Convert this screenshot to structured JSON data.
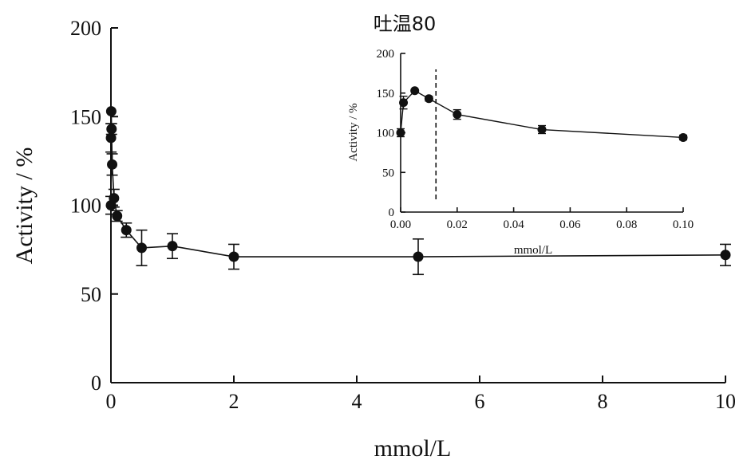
{
  "chart_data": [
    {
      "type": "line",
      "xlabel": "mmol/L",
      "ylabel": "Activity / %",
      "xlim": [
        0,
        10
      ],
      "ylim": [
        0,
        200
      ],
      "xticks": [
        "0",
        "2",
        "4",
        "6",
        "8",
        "10"
      ],
      "yticks": [
        "0",
        "50",
        "100",
        "150",
        "200"
      ],
      "grid": false,
      "legend": "none",
      "series": [
        {
          "x": [
            0,
            0.001,
            0.005,
            0.01,
            0.02,
            0.05,
            0.1,
            0.25,
            0.5,
            1,
            2,
            5,
            10
          ],
          "y": [
            100,
            138,
            153,
            143,
            123,
            104,
            94,
            86,
            76,
            77,
            71,
            71,
            72
          ],
          "err": [
            5,
            8,
            0,
            3,
            6,
            5,
            3,
            4,
            10,
            7,
            7,
            10,
            6
          ]
        }
      ]
    },
    {
      "type": "line",
      "title": "吐温80",
      "xlabel": "mmol/L",
      "ylabel": "Activity / %",
      "xlim": [
        0,
        0.1
      ],
      "ylim": [
        0,
        200
      ],
      "xticks": [
        "0.00",
        "0.02",
        "0.04",
        "0.06",
        "0.08",
        "0.10"
      ],
      "yticks": [
        "0",
        "50",
        "100",
        "150",
        "200"
      ],
      "reference_line_x": 0.0125,
      "grid": false,
      "legend": "none",
      "series": [
        {
          "x": [
            0,
            0.001,
            0.005,
            0.01,
            0.02,
            0.05,
            0.1
          ],
          "y": [
            100,
            138,
            153,
            143,
            123,
            104,
            94
          ],
          "err": [
            5,
            8,
            0,
            3,
            6,
            5,
            3
          ]
        }
      ]
    }
  ],
  "colors": {
    "ink": "#111111",
    "background": "#ffffff"
  }
}
